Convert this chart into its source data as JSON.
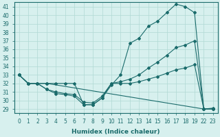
{
  "xlabel": "Humidex (Indice chaleur)",
  "background_color": "#d7f0ee",
  "line_color": "#1a6b6b",
  "grid_color": "#b0d8d4",
  "ylim": [
    28.5,
    41.5
  ],
  "yticks": [
    29,
    30,
    31,
    32,
    33,
    34,
    35,
    36,
    37,
    38,
    39,
    40,
    41
  ],
  "x_labels": [
    0,
    1,
    2,
    3,
    4,
    5,
    6,
    7,
    8,
    9,
    10,
    11,
    12,
    13,
    14,
    15,
    16,
    17,
    18,
    19,
    22,
    23
  ],
  "x_positions": [
    0,
    1,
    2,
    3,
    4,
    5,
    6,
    7,
    8,
    9,
    10,
    11,
    12,
    13,
    14,
    15,
    16,
    17,
    18,
    19,
    20,
    21
  ],
  "lines": [
    {
      "xi": [
        0,
        1,
        2,
        3,
        4,
        5,
        6,
        7,
        8,
        9,
        10,
        11,
        12,
        13,
        14,
        15,
        16,
        17,
        18,
        19,
        20,
        21
      ],
      "y": [
        33,
        32,
        32,
        32,
        32,
        32,
        32,
        29.5,
        29.5,
        30.3,
        31.8,
        33.0,
        36.7,
        37.3,
        38.7,
        39.3,
        40.3,
        41.3,
        41.0,
        40.3,
        29.0,
        29.1
      ]
    },
    {
      "xi": [
        0,
        1,
        2,
        3,
        4,
        5,
        6,
        7,
        8,
        9,
        10,
        11,
        12,
        13,
        14,
        15,
        16,
        17,
        18,
        19,
        20,
        21
      ],
      "y": [
        33,
        32,
        32,
        31.3,
        31.0,
        30.8,
        30.7,
        29.8,
        29.7,
        30.5,
        32.0,
        32.2,
        32.5,
        33.0,
        33.8,
        34.5,
        35.3,
        36.2,
        36.5,
        37.0,
        29.0,
        29.0
      ]
    },
    {
      "xi": [
        0,
        1,
        2,
        3,
        4,
        5,
        6,
        7,
        8,
        9,
        10,
        11,
        12,
        13,
        14,
        15,
        16,
        17,
        18,
        19,
        20,
        21
      ],
      "y": [
        33,
        32,
        32,
        31.3,
        30.8,
        30.7,
        30.5,
        29.5,
        29.5,
        30.3,
        32.0,
        32.0,
        32.0,
        32.2,
        32.5,
        32.8,
        33.2,
        33.6,
        33.8,
        34.2,
        29.0,
        29.0
      ]
    },
    {
      "xi": [
        0,
        1,
        2,
        3,
        20,
        21
      ],
      "y": [
        33,
        32,
        32,
        32,
        29.0,
        29.0
      ]
    }
  ]
}
